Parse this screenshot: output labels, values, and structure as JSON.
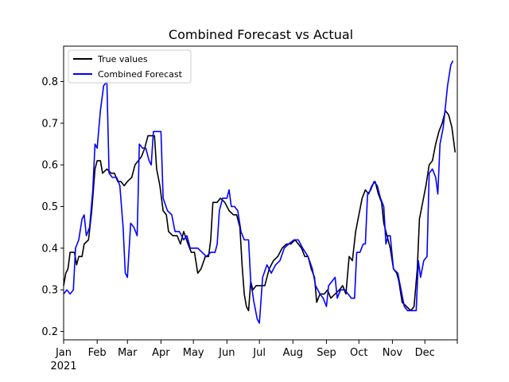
{
  "chart_data": {
    "type": "line",
    "title": "Combined Forecast vs Actual",
    "xlabel": "",
    "ylabel": "",
    "x_range": [
      "2021-01-01",
      "2021-12-31"
    ],
    "ylim": [
      0.18,
      0.885
    ],
    "grid": false,
    "legend_position": "top-left",
    "y_ticks": [
      0.2,
      0.3,
      0.4,
      0.5,
      0.6,
      0.7,
      0.8
    ],
    "x_ticks": [
      {
        "date": "2021-01-01",
        "label": "Jan",
        "sublabel": "2021"
      },
      {
        "date": "2021-02-01",
        "label": "Feb"
      },
      {
        "date": "2021-03-01",
        "label": "Mar"
      },
      {
        "date": "2021-04-01",
        "label": "Apr"
      },
      {
        "date": "2021-05-01",
        "label": "May"
      },
      {
        "date": "2021-06-01",
        "label": "Jun"
      },
      {
        "date": "2021-07-01",
        "label": "Jul"
      },
      {
        "date": "2021-08-01",
        "label": "Aug"
      },
      {
        "date": "2021-09-01",
        "label": "Sep"
      },
      {
        "date": "2021-10-01",
        "label": "Oct"
      },
      {
        "date": "2021-11-01",
        "label": "Nov"
      },
      {
        "date": "2021-12-01",
        "label": "Dec"
      }
    ],
    "series": [
      {
        "name": "True values",
        "color": "#000000",
        "points": [
          [
            "2021-01-01",
            0.31
          ],
          [
            "2021-01-03",
            0.34
          ],
          [
            "2021-01-05",
            0.35
          ],
          [
            "2021-01-07",
            0.39
          ],
          [
            "2021-01-09",
            0.39
          ],
          [
            "2021-01-11",
            0.39
          ],
          [
            "2021-01-13",
            0.36
          ],
          [
            "2021-01-15",
            0.38
          ],
          [
            "2021-01-18",
            0.38
          ],
          [
            "2021-01-20",
            0.41
          ],
          [
            "2021-01-24",
            0.42
          ],
          [
            "2021-01-27",
            0.49
          ],
          [
            "2021-01-30",
            0.59
          ],
          [
            "2021-02-01",
            0.61
          ],
          [
            "2021-02-04",
            0.61
          ],
          [
            "2021-02-06",
            0.58
          ],
          [
            "2021-02-10",
            0.59
          ],
          [
            "2021-02-14",
            0.58
          ],
          [
            "2021-02-17",
            0.58
          ],
          [
            "2021-02-20",
            0.56
          ],
          [
            "2021-02-23",
            0.56
          ],
          [
            "2021-02-26",
            0.55
          ],
          [
            "2021-03-01",
            0.56
          ],
          [
            "2021-03-05",
            0.57
          ],
          [
            "2021-03-08",
            0.6
          ],
          [
            "2021-03-11",
            0.61
          ],
          [
            "2021-03-14",
            0.62
          ],
          [
            "2021-03-17",
            0.64
          ],
          [
            "2021-03-20",
            0.67
          ],
          [
            "2021-03-23",
            0.67
          ],
          [
            "2021-03-26",
            0.67
          ],
          [
            "2021-03-28",
            0.59
          ],
          [
            "2021-03-31",
            0.55
          ],
          [
            "2021-04-03",
            0.49
          ],
          [
            "2021-04-06",
            0.48
          ],
          [
            "2021-04-08",
            0.44
          ],
          [
            "2021-04-12",
            0.43
          ],
          [
            "2021-04-16",
            0.43
          ],
          [
            "2021-04-19",
            0.41
          ],
          [
            "2021-04-22",
            0.44
          ],
          [
            "2021-04-26",
            0.41
          ],
          [
            "2021-04-29",
            0.39
          ],
          [
            "2021-05-02",
            0.39
          ],
          [
            "2021-05-05",
            0.34
          ],
          [
            "2021-05-08",
            0.35
          ],
          [
            "2021-05-12",
            0.38
          ],
          [
            "2021-05-15",
            0.38
          ],
          [
            "2021-05-17",
            0.42
          ],
          [
            "2021-05-19",
            0.51
          ],
          [
            "2021-05-23",
            0.51
          ],
          [
            "2021-05-26",
            0.52
          ],
          [
            "2021-05-30",
            0.51
          ],
          [
            "2021-06-03",
            0.49
          ],
          [
            "2021-06-07",
            0.48
          ],
          [
            "2021-06-10",
            0.48
          ],
          [
            "2021-06-13",
            0.45
          ],
          [
            "2021-06-15",
            0.36
          ],
          [
            "2021-06-17",
            0.29
          ],
          [
            "2021-06-19",
            0.26
          ],
          [
            "2021-06-21",
            0.25
          ],
          [
            "2021-06-23",
            0.32
          ],
          [
            "2021-06-25",
            0.3
          ],
          [
            "2021-06-28",
            0.31
          ],
          [
            "2021-07-02",
            0.31
          ],
          [
            "2021-07-06",
            0.31
          ],
          [
            "2021-07-10",
            0.35
          ],
          [
            "2021-07-14",
            0.37
          ],
          [
            "2021-07-18",
            0.38
          ],
          [
            "2021-07-22",
            0.4
          ],
          [
            "2021-07-26",
            0.41
          ],
          [
            "2021-07-30",
            0.41
          ],
          [
            "2021-08-03",
            0.42
          ],
          [
            "2021-08-06",
            0.41
          ],
          [
            "2021-08-09",
            0.4
          ],
          [
            "2021-08-12",
            0.38
          ],
          [
            "2021-08-15",
            0.38
          ],
          [
            "2021-08-18",
            0.35
          ],
          [
            "2021-08-21",
            0.33
          ],
          [
            "2021-08-23",
            0.27
          ],
          [
            "2021-08-26",
            0.29
          ],
          [
            "2021-08-30",
            0.29
          ],
          [
            "2021-09-02",
            0.3
          ],
          [
            "2021-09-05",
            0.28
          ],
          [
            "2021-09-09",
            0.29
          ],
          [
            "2021-09-13",
            0.3
          ],
          [
            "2021-09-16",
            0.31
          ],
          [
            "2021-09-19",
            0.29
          ],
          [
            "2021-09-22",
            0.38
          ],
          [
            "2021-09-25",
            0.37
          ],
          [
            "2021-09-28",
            0.44
          ],
          [
            "2021-10-01",
            0.48
          ],
          [
            "2021-10-04",
            0.52
          ],
          [
            "2021-10-07",
            0.54
          ],
          [
            "2021-10-10",
            0.53
          ],
          [
            "2021-10-13",
            0.55
          ],
          [
            "2021-10-16",
            0.56
          ],
          [
            "2021-10-19",
            0.53
          ],
          [
            "2021-10-22",
            0.51
          ],
          [
            "2021-10-24",
            0.46
          ],
          [
            "2021-10-27",
            0.43
          ],
          [
            "2021-10-30",
            0.4
          ],
          [
            "2021-11-02",
            0.35
          ],
          [
            "2021-11-05",
            0.34
          ],
          [
            "2021-11-07",
            0.32
          ],
          [
            "2021-11-10",
            0.27
          ],
          [
            "2021-11-14",
            0.26
          ],
          [
            "2021-11-18",
            0.25
          ],
          [
            "2021-11-21",
            0.26
          ],
          [
            "2021-11-24",
            0.35
          ],
          [
            "2021-11-26",
            0.47
          ],
          [
            "2021-11-29",
            0.51
          ],
          [
            "2021-12-02",
            0.55
          ],
          [
            "2021-12-05",
            0.6
          ],
          [
            "2021-12-08",
            0.61
          ],
          [
            "2021-12-11",
            0.65
          ],
          [
            "2021-12-14",
            0.68
          ],
          [
            "2021-12-17",
            0.7
          ],
          [
            "2021-12-20",
            0.73
          ],
          [
            "2021-12-23",
            0.72
          ],
          [
            "2021-12-26",
            0.69
          ],
          [
            "2021-12-29",
            0.63
          ]
        ]
      },
      {
        "name": "Combined Forecast",
        "color": "#0000ff",
        "points": [
          [
            "2021-01-01",
            0.29
          ],
          [
            "2021-01-04",
            0.3
          ],
          [
            "2021-01-07",
            0.29
          ],
          [
            "2021-01-10",
            0.3
          ],
          [
            "2021-01-12",
            0.4
          ],
          [
            "2021-01-15",
            0.42
          ],
          [
            "2021-01-18",
            0.47
          ],
          [
            "2021-01-20",
            0.48
          ],
          [
            "2021-01-22",
            0.43
          ],
          [
            "2021-01-25",
            0.45
          ],
          [
            "2021-01-28",
            0.54
          ],
          [
            "2021-01-30",
            0.65
          ],
          [
            "2021-02-01",
            0.64
          ],
          [
            "2021-02-04",
            0.73
          ],
          [
            "2021-02-07",
            0.79
          ],
          [
            "2021-02-10",
            0.8
          ],
          [
            "2021-02-12",
            0.58
          ],
          [
            "2021-02-15",
            0.57
          ],
          [
            "2021-02-19",
            0.57
          ],
          [
            "2021-02-22",
            0.55
          ],
          [
            "2021-02-25",
            0.45
          ],
          [
            "2021-02-27",
            0.34
          ],
          [
            "2021-03-01",
            0.33
          ],
          [
            "2021-03-04",
            0.46
          ],
          [
            "2021-03-07",
            0.45
          ],
          [
            "2021-03-10",
            0.43
          ],
          [
            "2021-03-12",
            0.65
          ],
          [
            "2021-03-15",
            0.64
          ],
          [
            "2021-03-18",
            0.64
          ],
          [
            "2021-03-21",
            0.61
          ],
          [
            "2021-03-23",
            0.6
          ],
          [
            "2021-03-25",
            0.68
          ],
          [
            "2021-03-29",
            0.68
          ],
          [
            "2021-04-01",
            0.68
          ],
          [
            "2021-04-03",
            0.52
          ],
          [
            "2021-04-07",
            0.49
          ],
          [
            "2021-04-11",
            0.48
          ],
          [
            "2021-04-14",
            0.44
          ],
          [
            "2021-04-18",
            0.44
          ],
          [
            "2021-04-22",
            0.42
          ],
          [
            "2021-04-25",
            0.43
          ],
          [
            "2021-04-28",
            0.4
          ],
          [
            "2021-05-01",
            0.4
          ],
          [
            "2021-05-05",
            0.4
          ],
          [
            "2021-05-09",
            0.39
          ],
          [
            "2021-05-13",
            0.38
          ],
          [
            "2021-05-17",
            0.39
          ],
          [
            "2021-05-21",
            0.39
          ],
          [
            "2021-05-23",
            0.41
          ],
          [
            "2021-05-25",
            0.49
          ],
          [
            "2021-05-28",
            0.52
          ],
          [
            "2021-06-01",
            0.52
          ],
          [
            "2021-06-03",
            0.54
          ],
          [
            "2021-06-05",
            0.5
          ],
          [
            "2021-06-08",
            0.5
          ],
          [
            "2021-06-11",
            0.49
          ],
          [
            "2021-06-14",
            0.44
          ],
          [
            "2021-06-17",
            0.42
          ],
          [
            "2021-06-21",
            0.42
          ],
          [
            "2021-06-23",
            0.32
          ],
          [
            "2021-06-26",
            0.27
          ],
          [
            "2021-06-29",
            0.23
          ],
          [
            "2021-07-01",
            0.22
          ],
          [
            "2021-07-04",
            0.33
          ],
          [
            "2021-07-08",
            0.36
          ],
          [
            "2021-07-12",
            0.34
          ],
          [
            "2021-07-16",
            0.36
          ],
          [
            "2021-07-20",
            0.37
          ],
          [
            "2021-07-24",
            0.4
          ],
          [
            "2021-07-28",
            0.41
          ],
          [
            "2021-08-02",
            0.42
          ],
          [
            "2021-08-06",
            0.42
          ],
          [
            "2021-08-10",
            0.4
          ],
          [
            "2021-08-15",
            0.38
          ],
          [
            "2021-08-19",
            0.35
          ],
          [
            "2021-08-22",
            0.31
          ],
          [
            "2021-08-26",
            0.29
          ],
          [
            "2021-08-29",
            0.28
          ],
          [
            "2021-09-01",
            0.26
          ],
          [
            "2021-09-03",
            0.31
          ],
          [
            "2021-09-06",
            0.32
          ],
          [
            "2021-09-09",
            0.33
          ],
          [
            "2021-09-11",
            0.28
          ],
          [
            "2021-09-14",
            0.3
          ],
          [
            "2021-09-18",
            0.3
          ],
          [
            "2021-09-21",
            0.29
          ],
          [
            "2021-09-24",
            0.28
          ],
          [
            "2021-09-27",
            0.28
          ],
          [
            "2021-09-29",
            0.39
          ],
          [
            "2021-10-02",
            0.39
          ],
          [
            "2021-10-05",
            0.41
          ],
          [
            "2021-10-07",
            0.41
          ],
          [
            "2021-10-09",
            0.53
          ],
          [
            "2021-10-12",
            0.54
          ],
          [
            "2021-10-15",
            0.56
          ],
          [
            "2021-10-18",
            0.55
          ],
          [
            "2021-10-21",
            0.52
          ],
          [
            "2021-10-24",
            0.5
          ],
          [
            "2021-10-26",
            0.41
          ],
          [
            "2021-10-28",
            0.43
          ],
          [
            "2021-10-30",
            0.43
          ],
          [
            "2021-11-02",
            0.35
          ],
          [
            "2021-11-06",
            0.34
          ],
          [
            "2021-11-09",
            0.3
          ],
          [
            "2021-11-12",
            0.26
          ],
          [
            "2021-11-15",
            0.25
          ],
          [
            "2021-11-19",
            0.25
          ],
          [
            "2021-11-23",
            0.25
          ],
          [
            "2021-11-25",
            0.37
          ],
          [
            "2021-11-27",
            0.33
          ],
          [
            "2021-11-30",
            0.37
          ],
          [
            "2021-12-03",
            0.38
          ],
          [
            "2021-12-05",
            0.58
          ],
          [
            "2021-12-08",
            0.59
          ],
          [
            "2021-12-11",
            0.57
          ],
          [
            "2021-12-13",
            0.53
          ],
          [
            "2021-12-15",
            0.65
          ],
          [
            "2021-12-18",
            0.69
          ],
          [
            "2021-12-22",
            0.79
          ],
          [
            "2021-12-25",
            0.84
          ],
          [
            "2021-12-27",
            0.85
          ]
        ]
      }
    ]
  }
}
